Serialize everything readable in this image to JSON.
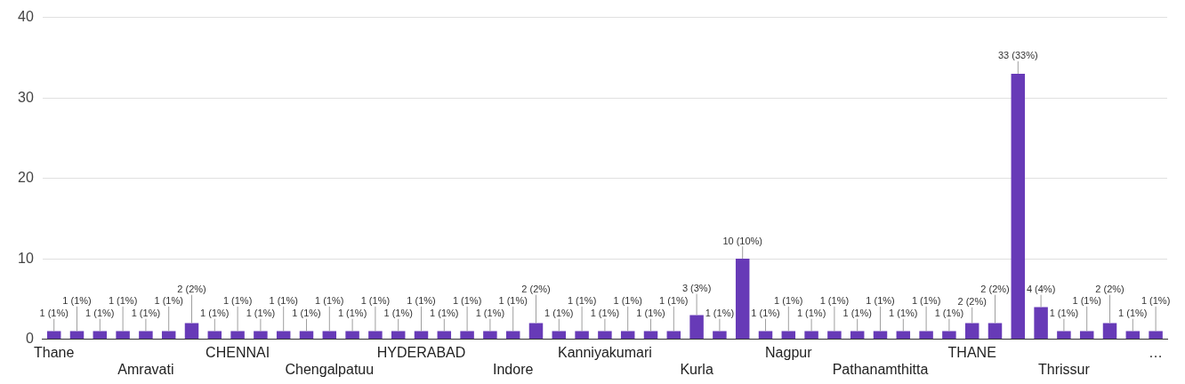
{
  "chart_data": {
    "type": "bar",
    "categories": [
      "Thane",
      null,
      null,
      null,
      "Amravati",
      null,
      null,
      null,
      "CHENNAI",
      null,
      null,
      null,
      "Chengalpatuu",
      null,
      null,
      null,
      "HYDERABAD",
      null,
      null,
      null,
      "Indore",
      null,
      null,
      null,
      "Kanniyakumari",
      null,
      null,
      null,
      "Kurla",
      null,
      null,
      null,
      "Nagpur",
      null,
      null,
      null,
      "Pathanamthitta",
      null,
      null,
      null,
      "THANE",
      null,
      null,
      null,
      "Thrissur",
      null,
      null,
      null,
      "…"
    ],
    "values": [
      1,
      1,
      1,
      1,
      1,
      1,
      2,
      1,
      1,
      1,
      1,
      1,
      1,
      1,
      1,
      1,
      1,
      1,
      1,
      1,
      1,
      2,
      1,
      1,
      1,
      1,
      1,
      1,
      3,
      1,
      10,
      1,
      1,
      1,
      1,
      1,
      1,
      1,
      1,
      1,
      2,
      2,
      33,
      4,
      1,
      1,
      2,
      1,
      1
    ],
    "value_labels": [
      "1 (1%)",
      "1 (1%)",
      "1 (1%)",
      "1 (1%)",
      "1 (1%)",
      "1 (1%)",
      "2 (2%)",
      "1 (1%)",
      "1 (1%)",
      "1 (1%)",
      "1 (1%)",
      "1 (1%)",
      "1 (1%)",
      "1 (1%)",
      "1 (1%)",
      "1 (1%)",
      "1 (1%)",
      "1 (1%)",
      "1 (1%)",
      "1 (1%)",
      "1 (1%)",
      "2 (2%)",
      "1 (1%)",
      "1 (1%)",
      "1 (1%)",
      "1 (1%)",
      "1 (1%)",
      "1 (1%)",
      "3 (3%)",
      "1 (1%)",
      "10 (10%)",
      "1 (1%)",
      "1 (1%)",
      "1 (1%)",
      "1 (1%)",
      "1 (1%)",
      "1 (1%)",
      "1 (1%)",
      "1 (1%)",
      "1 (1%)",
      "2 (2%)",
      "2 (2%)",
      "33 (33%)",
      "4 (4%)",
      "1 (1%)",
      "1 (1%)",
      "2 (2%)",
      "1 (1%)",
      "1 (1%)"
    ],
    "color": "#673ab7",
    "ylim": [
      0,
      40
    ],
    "yticks": [
      0,
      10,
      20,
      30,
      40
    ],
    "grid": "y"
  }
}
